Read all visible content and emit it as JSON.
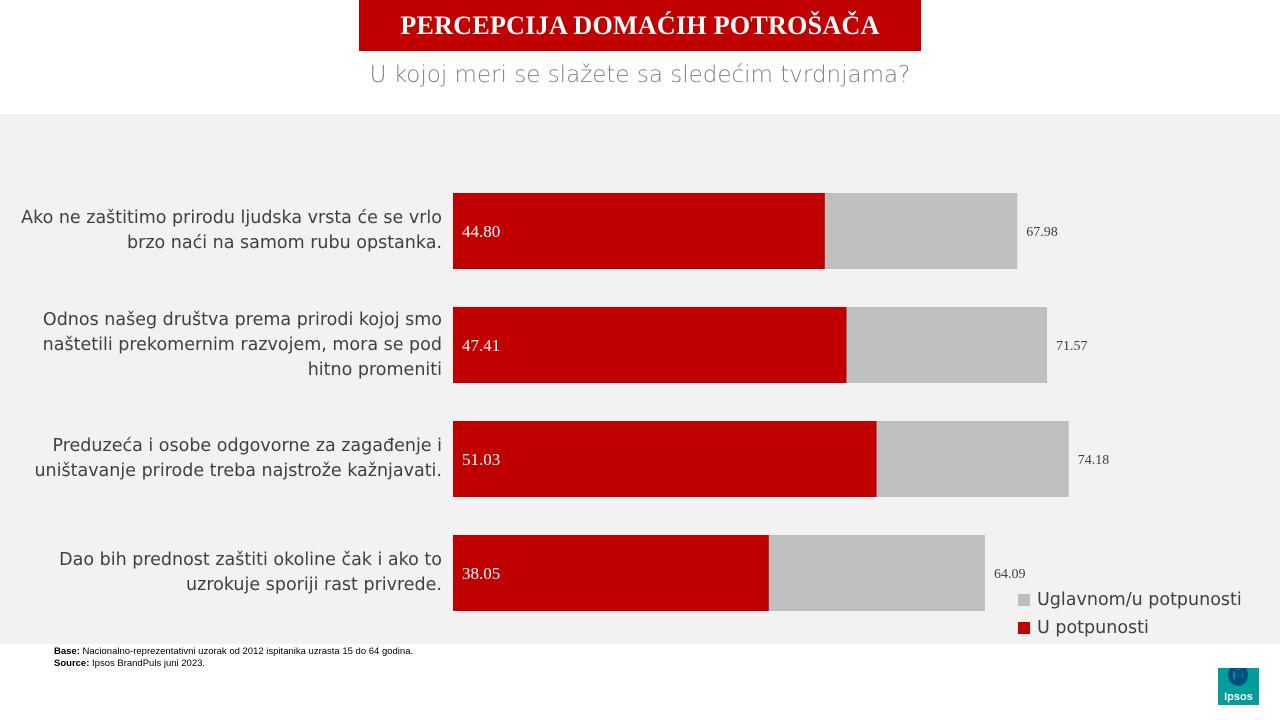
{
  "header": {
    "title": "PERCEPCIJA DOMAĆIH POTROŠAČA",
    "subtitle": "U kojoj meri se slažete sa sledećim tvrdnjama?"
  },
  "chart_data": {
    "type": "bar",
    "orientation": "horizontal",
    "categories": [
      "Ako ne zaštitimo prirodu ljudska vrsta će se vrlo brzo naći na samom rubu opstanka.",
      "Odnos našeg društva prema prirodi kojoj smo naštetili prekomernim razvojem, mora se pod hitno promeniti",
      "Preduzeća i osobe odgovorne za zagađenje i uništavanje prirode treba najstrože kažnjavati.",
      "Dao bih prednost zaštiti okoline čak i ako to uzrokuje sporiji rast privrede."
    ],
    "series": [
      {
        "name": "Uglavnom/u potpunosti",
        "values": [
          67.98,
          71.57,
          74.18,
          64.09
        ],
        "color": "#bfbfbf"
      },
      {
        "name": "U potpunosti",
        "values": [
          44.8,
          47.41,
          51.03,
          38.05
        ],
        "color": "#c00000"
      }
    ],
    "value_labels": {
      "Uglavnom/u potpunosti": [
        "67.98",
        "71.57",
        "74.18",
        "64.09"
      ],
      "U potpunosti": [
        "44.80",
        "47.41",
        "51.03",
        "38.05"
      ]
    },
    "xlim": [
      0,
      100
    ],
    "grid": false,
    "legend_position": "bottom-right"
  },
  "footer": {
    "base_label": "Base:",
    "base_text": "Nacionalno-reprezentativni uzorak od 2012 ispitanika uzrasta 15 do 64 godina.",
    "source_label": "Source:",
    "source_text": "Ipsos BrandPuls juni 2023."
  },
  "logo": {
    "text": "Ipsos",
    "color": "#009d9a"
  }
}
